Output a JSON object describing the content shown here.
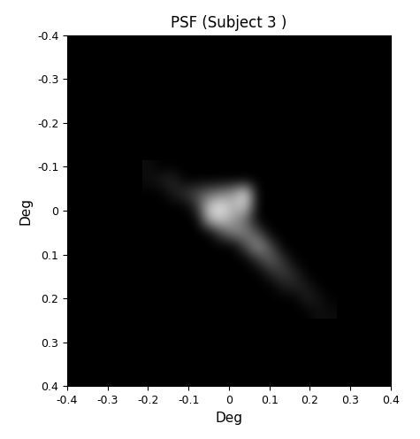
{
  "chart_data": {
    "type": "heatmap",
    "title": "PSF (Subject 3 )",
    "x_label": "Deg",
    "y_label": "Deg",
    "xlim": [
      -0.4,
      0.4
    ],
    "ylim": [
      0.4,
      -0.4
    ],
    "xticks": [
      -0.4,
      -0.3,
      -0.2,
      -0.1,
      0,
      0.1,
      0.2,
      0.3,
      0.4
    ],
    "yticks": [
      -0.4,
      -0.3,
      -0.2,
      -0.1,
      0,
      0.1,
      0.2,
      0.3,
      0.4
    ],
    "color": "gray",
    "value_range": [
      0,
      1
    ],
    "x": [
      -0.2,
      -0.17,
      -0.14,
      -0.11,
      -0.08,
      -0.05,
      -0.02,
      0.01,
      0.04,
      0.07,
      0.1,
      0.13,
      0.16,
      0.19,
      0.22,
      0.25
    ],
    "y": [
      -0.1,
      -0.07,
      -0.04,
      -0.01,
      0.02,
      0.05,
      0.08,
      0.11,
      0.14,
      0.17,
      0.2,
      0.23
    ],
    "cells": [
      [
        0.05,
        0,
        0,
        0,
        0,
        0,
        0,
        0,
        0,
        0,
        0,
        0,
        0,
        0,
        0,
        0
      ],
      [
        0.05,
        0.1,
        0.15,
        0,
        0,
        0,
        0,
        0,
        0,
        0,
        0,
        0,
        0,
        0,
        0,
        0
      ],
      [
        0,
        0,
        0.1,
        0.2,
        0.3,
        0.4,
        0.5,
        0.6,
        0.9,
        0,
        0,
        0,
        0,
        0,
        0,
        0
      ],
      [
        0,
        0,
        0,
        0,
        0.2,
        0.8,
        0.9,
        0.7,
        0.8,
        0,
        0,
        0,
        0,
        0,
        0,
        0
      ],
      [
        0,
        0,
        0,
        0,
        0,
        0.7,
        0.8,
        0.6,
        0.4,
        0,
        0,
        0,
        0,
        0,
        0,
        0
      ],
      [
        0,
        0,
        0,
        0,
        0,
        0,
        0.3,
        0.5,
        0.5,
        0.3,
        0,
        0,
        0,
        0,
        0,
        0
      ],
      [
        0,
        0,
        0,
        0,
        0,
        0,
        0,
        0,
        0.3,
        0.6,
        0.3,
        0,
        0,
        0,
        0,
        0
      ],
      [
        0,
        0,
        0,
        0,
        0,
        0,
        0,
        0,
        0,
        0.2,
        0.4,
        0.2,
        0,
        0,
        0,
        0
      ],
      [
        0,
        0,
        0,
        0,
        0,
        0,
        0,
        0,
        0,
        0,
        0.15,
        0.25,
        0.15,
        0,
        0,
        0
      ],
      [
        0,
        0,
        0,
        0,
        0,
        0,
        0,
        0,
        0,
        0,
        0,
        0.1,
        0.15,
        0.1,
        0,
        0
      ],
      [
        0,
        0,
        0,
        0,
        0,
        0,
        0,
        0,
        0,
        0,
        0,
        0,
        0,
        0.12,
        0.08,
        0
      ],
      [
        0,
        0,
        0,
        0,
        0,
        0,
        0,
        0,
        0,
        0,
        0,
        0,
        0,
        0,
        0.06,
        0.04
      ]
    ],
    "grid": false
  }
}
